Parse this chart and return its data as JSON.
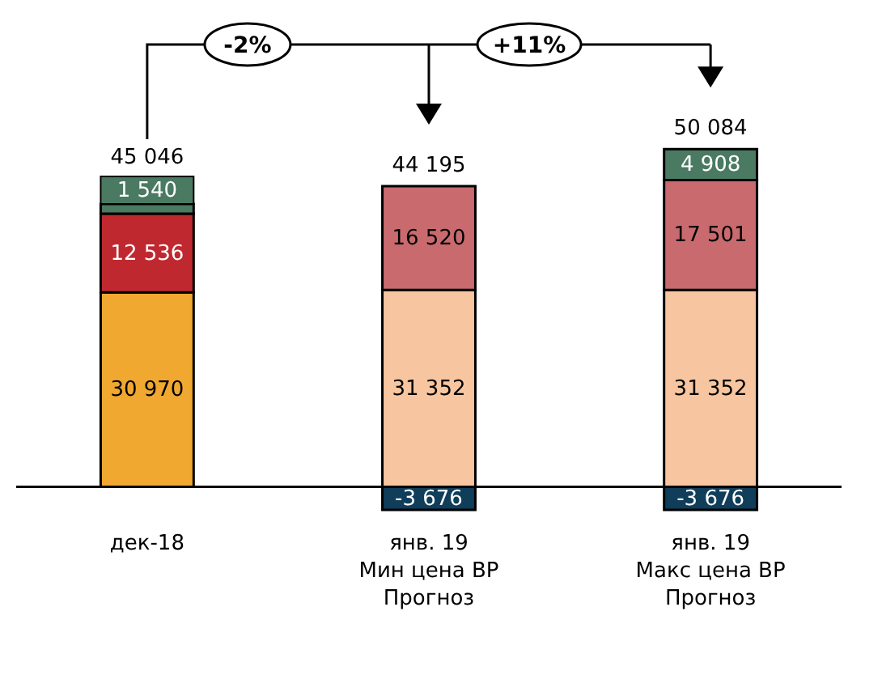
{
  "chart_data": {
    "type": "bar",
    "stacked": true,
    "categories": [
      "дек-18",
      "янв. 19\nМин цена ВР\nПрогноз",
      "янв. 19\nМакс цена ВР\nПрогноз"
    ],
    "series": [
      {
        "colors": [
          "#f0a830",
          "#f7c6a0",
          "#f7c6a0"
        ],
        "values": [
          30970,
          31352,
          31352
        ],
        "value_labels": [
          "30 970",
          "31 352",
          "31 352"
        ]
      },
      {
        "colors": [
          "#c0282f",
          "#c96a6e",
          "#c96a6e"
        ],
        "values": [
          12536,
          16520,
          17501
        ],
        "value_labels": [
          "12 536",
          "16 520",
          "17 501"
        ]
      },
      {
        "color": "#4a7a62",
        "values": [
          1540,
          null,
          4908
        ],
        "value_labels": [
          "1 540",
          null,
          "4 908"
        ]
      },
      {
        "color": "#0f3d5a",
        "values": [
          null,
          -3676,
          -3676
        ],
        "value_labels": [
          null,
          "-3 676",
          "-3 676"
        ]
      }
    ],
    "totals": [
      "45 046",
      "44 195",
      "50 084"
    ],
    "annotations": [
      "-2%",
      "+11%"
    ]
  }
}
